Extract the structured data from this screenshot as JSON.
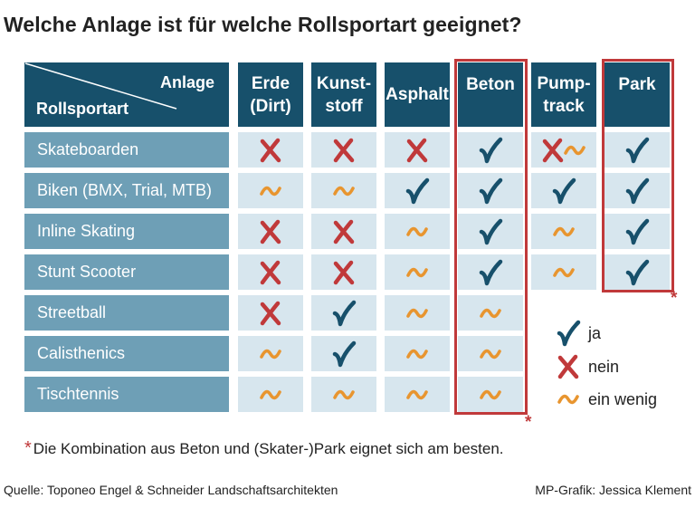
{
  "title": "Welche Anlage ist für welche Rollsportart geeignet?",
  "chart_data": {
    "type": "table",
    "corner_top": "Anlage",
    "corner_bottom": "Rollsportart",
    "columns": [
      "Erde\n(Dirt)",
      "Kunst-\nstoff",
      "Asphalt",
      "Beton",
      "Pump-\ntrack",
      "Park"
    ],
    "rows": [
      {
        "label": "Skateboarden",
        "values": [
          "nein",
          "nein",
          "nein",
          "ja",
          "nein/ein wenig",
          "ja"
        ]
      },
      {
        "label": "Biken (BMX, Trial, MTB)",
        "values": [
          "ein wenig",
          "ein wenig",
          "ja",
          "ja",
          "ja",
          "ja"
        ]
      },
      {
        "label": "Inline Skating",
        "values": [
          "nein",
          "nein",
          "ein wenig",
          "ja",
          "ein wenig",
          "ja"
        ]
      },
      {
        "label": "Stunt Scooter",
        "values": [
          "nein",
          "nein",
          "ein wenig",
          "ja",
          "ein wenig",
          "ja"
        ]
      },
      {
        "label": "Streetball",
        "values": [
          "nein",
          "ja",
          "ein wenig",
          "ein wenig",
          null,
          null
        ]
      },
      {
        "label": "Calisthenics",
        "values": [
          "ein wenig",
          "ja",
          "ein wenig",
          "ein wenig",
          null,
          null
        ]
      },
      {
        "label": "Tischtennis",
        "values": [
          "ein wenig",
          "ein wenig",
          "ein wenig",
          "ein wenig",
          null,
          null
        ]
      }
    ],
    "highlighted_columns": [
      "Beton",
      "Park"
    ],
    "star_marker": "*"
  },
  "legend": [
    {
      "key": "ja",
      "label": "ja"
    },
    {
      "key": "nein",
      "label": "nein"
    },
    {
      "key": "ein wenig",
      "label": "ein wenig"
    }
  ],
  "colors": {
    "header": "#17506b",
    "row_label": "#6e9fb6",
    "cell": "#d7e6ee",
    "check": "#17506b",
    "cross": "#c0393a",
    "tilde": "#e8952f",
    "frame": "#c0393a"
  },
  "footnote": {
    "star": "*",
    "text": "Die Kombination aus Beton und (Skater-)Park eignet sich am besten."
  },
  "source": "Quelle: Toponeo Engel & Schneider Landschaftsarchitekten",
  "credit": "MP-Grafik: Jessica Klement"
}
